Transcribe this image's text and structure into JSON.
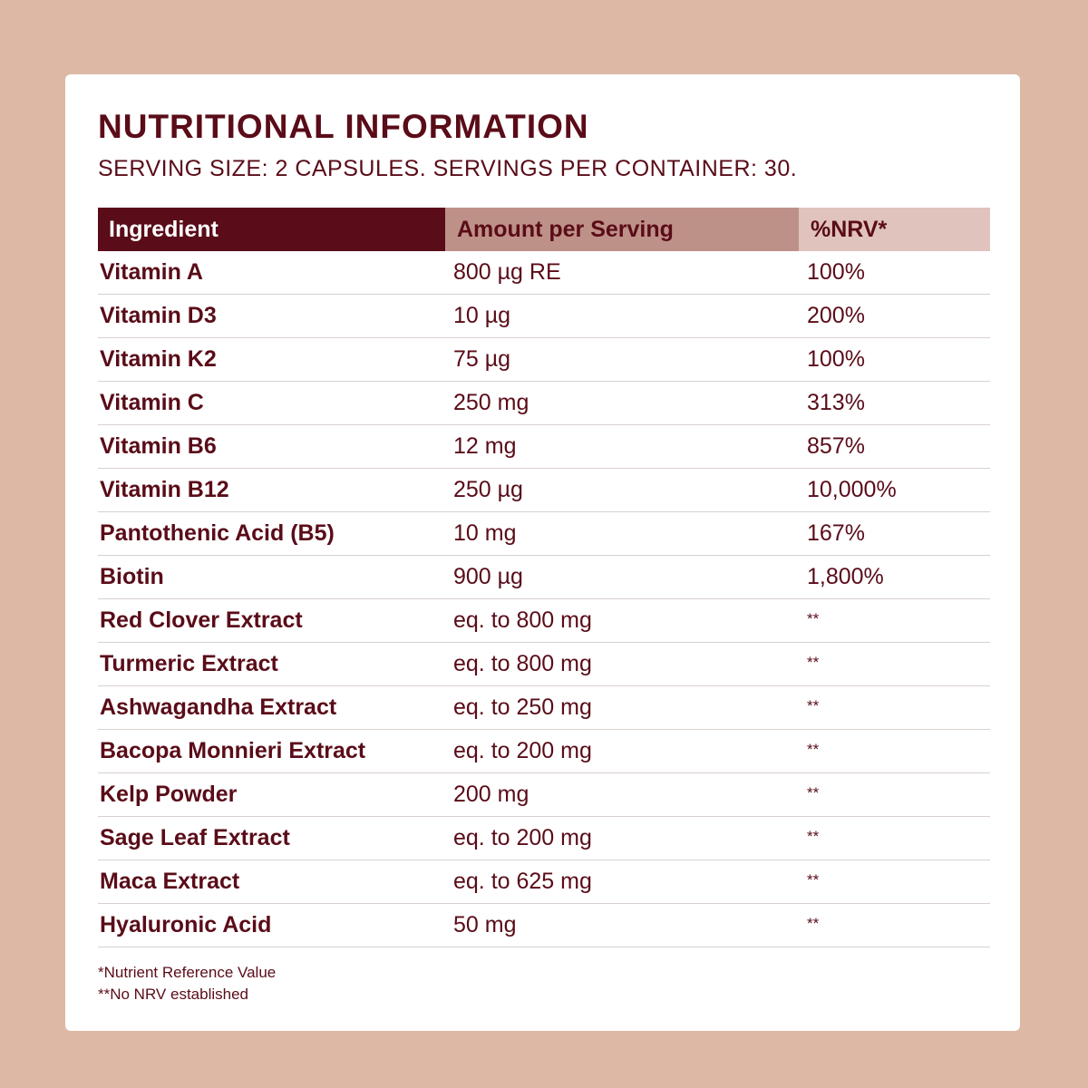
{
  "title": "NUTRITIONAL INFORMATION",
  "subtitle": "SERVING SIZE: 2 CAPSULES. SERVINGS PER CONTAINER: 30.",
  "table": {
    "headers": [
      "Ingredient",
      "Amount per Serving",
      "%NRV*"
    ],
    "rows": [
      {
        "ingredient": "Vitamin A",
        "amount": "800 µg RE",
        "nrv": "100%"
      },
      {
        "ingredient": "Vitamin D3",
        "amount": "10 µg",
        "nrv": "200%"
      },
      {
        "ingredient": "Vitamin K2",
        "amount": "75 µg",
        "nrv": "100%"
      },
      {
        "ingredient": "Vitamin C",
        "amount": "250 mg",
        "nrv": "313%"
      },
      {
        "ingredient": "Vitamin B6",
        "amount": "12 mg",
        "nrv": "857%"
      },
      {
        "ingredient": "Vitamin B12",
        "amount": "250 µg",
        "nrv": "10,000%"
      },
      {
        "ingredient": "Pantothenic Acid (B5)",
        "amount": "10 mg",
        "nrv": "167%"
      },
      {
        "ingredient": "Biotin",
        "amount": "900 µg",
        "nrv": "1,800%"
      },
      {
        "ingredient": "Red Clover Extract",
        "amount": "eq. to 800 mg",
        "nrv": "**"
      },
      {
        "ingredient": "Turmeric Extract",
        "amount": "eq. to 800 mg",
        "nrv": "**"
      },
      {
        "ingredient": "Ashwagandha Extract",
        "amount": "eq. to 250 mg",
        "nrv": "**"
      },
      {
        "ingredient": "Bacopa Monnieri Extract",
        "amount": "eq. to 200 mg",
        "nrv": "**"
      },
      {
        "ingredient": "Kelp Powder",
        "amount": "200 mg",
        "nrv": "**"
      },
      {
        "ingredient": "Sage Leaf Extract",
        "amount": "eq. to 200 mg",
        "nrv": "**"
      },
      {
        "ingredient": "Maca Extract",
        "amount": "eq. to 625 mg",
        "nrv": "**"
      },
      {
        "ingredient": "Hyaluronic Acid",
        "amount": "50 mg",
        "nrv": "**"
      }
    ]
  },
  "footnotes": [
    "*Nutrient Reference Value",
    "**No NRV established"
  ],
  "colors": {
    "background": "#ddb8a5",
    "text": "#5a0c18",
    "header_col1": "#5a0c18",
    "header_col2": "#be9188",
    "header_col3": "#dfc3bc"
  }
}
